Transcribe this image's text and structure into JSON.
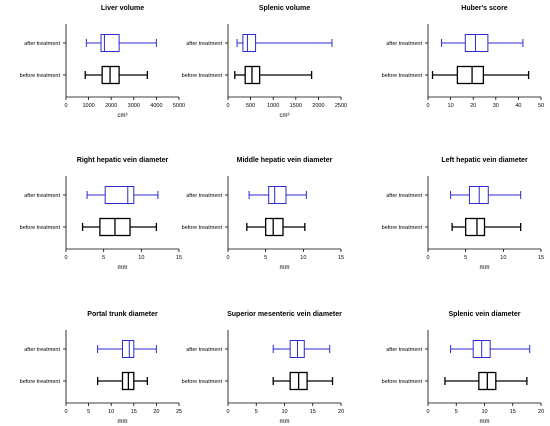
{
  "colors": {
    "after": "#2b2bd0",
    "before": "#000000"
  },
  "chart_data": [
    {
      "type": "boxplot",
      "title": "Liver volume",
      "xlabel": "cm³",
      "xlim": [
        0,
        5000
      ],
      "ticks": [
        0,
        1000,
        2000,
        3000,
        4000,
        5000
      ],
      "series": [
        {
          "name": "after treatment",
          "min": 900,
          "q1": 1550,
          "median": 1700,
          "q3": 2350,
          "max": 4000
        },
        {
          "name": "before treatment",
          "min": 850,
          "q1": 1600,
          "median": 1950,
          "q3": 2350,
          "max": 3600
        }
      ]
    },
    {
      "type": "boxplot",
      "title": "Splenic volume",
      "xlabel": "cm³",
      "xlim": [
        0,
        2500
      ],
      "ticks": [
        0,
        500,
        1000,
        1500,
        2000,
        2500
      ],
      "series": [
        {
          "name": "after treatment",
          "min": 200,
          "q1": 330,
          "median": 430,
          "q3": 610,
          "max": 2300
        },
        {
          "name": "before treatment",
          "min": 150,
          "q1": 380,
          "median": 530,
          "q3": 700,
          "max": 1850
        }
      ]
    },
    {
      "type": "boxplot",
      "title": "Huber's score",
      "xlabel": "",
      "xlim": [
        0,
        50
      ],
      "ticks": [
        0,
        10,
        20,
        30,
        40,
        50
      ],
      "series": [
        {
          "name": "after treatment",
          "min": 6,
          "q1": 16.5,
          "median": 21,
          "q3": 26.5,
          "max": 42
        },
        {
          "name": "before treatment",
          "min": 2,
          "q1": 13,
          "median": 19.5,
          "q3": 24.5,
          "max": 44.5
        }
      ]
    },
    {
      "type": "boxplot",
      "title": "Right hepatic vein diameter",
      "xlabel": "mm",
      "xlim": [
        0,
        15
      ],
      "ticks": [
        0,
        5,
        10,
        15
      ],
      "series": [
        {
          "name": "after treatment",
          "min": 2.8,
          "q1": 5.2,
          "median": 8.2,
          "q3": 9.0,
          "max": 12.2
        },
        {
          "name": "before treatment",
          "min": 2.2,
          "q1": 4.5,
          "median": 6.5,
          "q3": 8.5,
          "max": 12.0
        }
      ]
    },
    {
      "type": "boxplot",
      "title": "Middle hepatic vein diameter",
      "xlabel": "mm",
      "xlim": [
        0,
        15
      ],
      "ticks": [
        0,
        5,
        10,
        15
      ],
      "series": [
        {
          "name": "after treatment",
          "min": 2.8,
          "q1": 5.4,
          "median": 6.2,
          "q3": 7.7,
          "max": 10.4
        },
        {
          "name": "before treatment",
          "min": 2.5,
          "q1": 5.0,
          "median": 6.0,
          "q3": 7.3,
          "max": 10.2
        }
      ]
    },
    {
      "type": "boxplot",
      "title": "Left hepatic vein diameter",
      "xlabel": "mm",
      "xlim": [
        0,
        15
      ],
      "ticks": [
        0,
        5,
        10,
        15
      ],
      "series": [
        {
          "name": "after treatment",
          "min": 3.0,
          "q1": 5.5,
          "median": 6.8,
          "q3": 8.0,
          "max": 12.3
        },
        {
          "name": "before treatment",
          "min": 3.2,
          "q1": 5.0,
          "median": 6.5,
          "q3": 7.5,
          "max": 12.3
        }
      ]
    },
    {
      "type": "boxplot",
      "title": "Portal trunk diameter",
      "xlabel": "mm",
      "xlim": [
        0,
        25
      ],
      "ticks": [
        0,
        5,
        10,
        15,
        20,
        25
      ],
      "series": [
        {
          "name": "after treatment",
          "min": 7,
          "q1": 12.5,
          "median": 14.0,
          "q3": 15.0,
          "max": 20
        },
        {
          "name": "before treatment",
          "min": 7,
          "q1": 12.5,
          "median": 13.8,
          "q3": 15.0,
          "max": 18
        }
      ]
    },
    {
      "type": "boxplot",
      "title": "Superior mesenteric vein diameter",
      "xlabel": "mm",
      "xlim": [
        0,
        20
      ],
      "ticks": [
        0,
        5,
        10,
        15,
        20
      ],
      "series": [
        {
          "name": "after treatment",
          "min": 8,
          "q1": 11,
          "median": 12.3,
          "q3": 13.5,
          "max": 18
        },
        {
          "name": "before treatment",
          "min": 8,
          "q1": 11,
          "median": 12.5,
          "q3": 14,
          "max": 18.5
        }
      ]
    },
    {
      "type": "boxplot",
      "title": "Splenic vein diameter",
      "xlabel": "mm",
      "xlim": [
        0,
        20
      ],
      "ticks": [
        0,
        5,
        10,
        15,
        20
      ],
      "series": [
        {
          "name": "after treatment",
          "min": 4,
          "q1": 8,
          "median": 9.5,
          "q3": 11,
          "max": 18
        },
        {
          "name": "before treatment",
          "min": 3,
          "q1": 9,
          "median": 10.5,
          "q3": 12,
          "max": 17.5
        }
      ]
    }
  ]
}
